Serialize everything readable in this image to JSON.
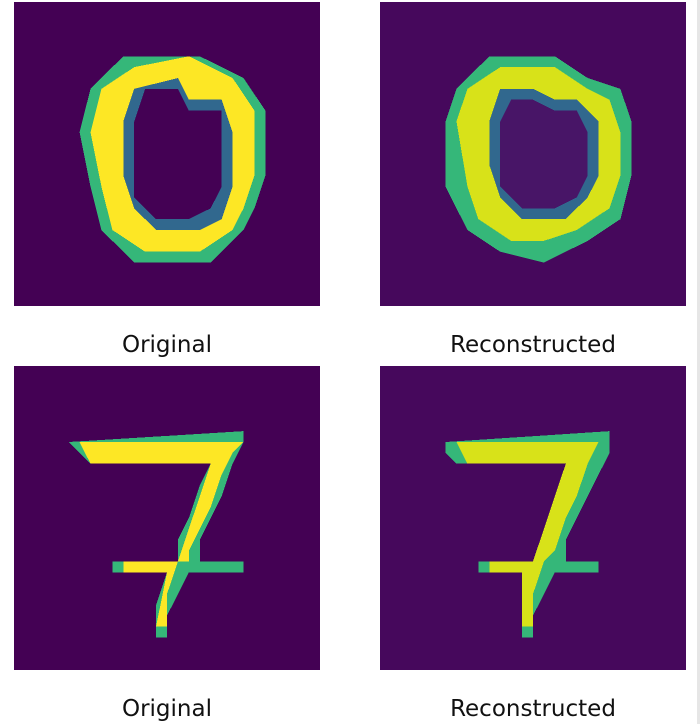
{
  "colors": {
    "background": "#440154",
    "ring_low": "#31688e",
    "ring_mid": "#35b779",
    "ring_high": "#fde725"
  },
  "figure": {
    "rows": [
      {
        "digit": "0",
        "left_caption": "Original",
        "right_caption": "Reconstructed"
      },
      {
        "digit": "7",
        "left_caption": "Original",
        "right_caption": "Reconstructed"
      }
    ]
  }
}
